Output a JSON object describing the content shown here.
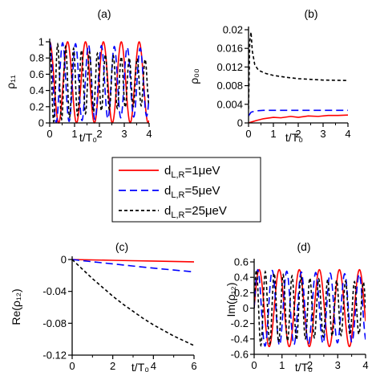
{
  "chart_data": [
    {
      "type": "line",
      "panel_label": "(a)",
      "xlabel": "t/T₀",
      "ylabel": "ρ₁₁",
      "xlim": [
        0,
        4
      ],
      "ylim": [
        0,
        1
      ],
      "xticks": [
        0,
        1,
        2,
        3,
        4
      ],
      "xtick_labels": [
        "0",
        "1",
        "2",
        "3",
        "4"
      ],
      "yticks": [
        0,
        0.2,
        0.4,
        0.6,
        0.8,
        1
      ],
      "ytick_labels": [
        "0",
        "0.2",
        "0.4",
        "0.6",
        "0.8",
        "1"
      ],
      "series": [
        {
          "name": "d_L,R=1μeV",
          "color": "#ff0000",
          "dash": "solid",
          "kind": "cos2",
          "period": 0.72,
          "tau": 1000
        },
        {
          "name": "d_L,R=5μeV",
          "color": "#0000ff",
          "dash": "dashed",
          "kind": "cos2",
          "period": 0.52,
          "tau": 12
        },
        {
          "name": "d_L,R=25μeV",
          "color": "#000000",
          "dash": "dotted",
          "kind": "cos2",
          "period": 0.32,
          "tau": 3
        }
      ]
    },
    {
      "type": "line",
      "panel_label": "(b)",
      "xlabel": "t/T₀",
      "ylabel": "ρ₀₀",
      "xlim": [
        0,
        4
      ],
      "ylim": [
        0,
        0.02
      ],
      "xticks": [
        0,
        1,
        2,
        3,
        4
      ],
      "xtick_labels": [
        "0",
        "1",
        "2",
        "3",
        "4"
      ],
      "yticks": [
        0,
        0.004,
        0.008,
        0.012,
        0.016,
        0.02
      ],
      "ytick_labels": [
        "0",
        "0.004",
        "0.008",
        "0.012",
        "0.016",
        "0.02"
      ],
      "series": [
        {
          "name": "d_L,R=1μeV",
          "color": "#ff0000",
          "dash": "solid",
          "points": [
            [
              0,
              0
            ],
            [
              0.3,
              0.0005
            ],
            [
              0.6,
              0.0009
            ],
            [
              1.0,
              0.0012
            ],
            [
              1.3,
              0.0011
            ],
            [
              1.7,
              0.0014
            ],
            [
              2.0,
              0.0012
            ],
            [
              2.4,
              0.0015
            ],
            [
              2.8,
              0.0014
            ],
            [
              3.2,
              0.0016
            ],
            [
              3.6,
              0.0016
            ],
            [
              4.0,
              0.0017
            ]
          ]
        },
        {
          "name": "d_L,R=5μeV",
          "color": "#0000ff",
          "dash": "dashed",
          "points": [
            [
              0,
              0.0015
            ],
            [
              0.1,
              0.0023
            ],
            [
              0.3,
              0.0026
            ],
            [
              0.6,
              0.0027
            ],
            [
              1.0,
              0.0027
            ],
            [
              2.0,
              0.0027
            ],
            [
              3.0,
              0.0027
            ],
            [
              4.0,
              0.0027
            ]
          ]
        },
        {
          "name": "d_L,R=25μeV",
          "color": "#000000",
          "dash": "dotted",
          "points": [
            [
              0,
              0.003
            ],
            [
              0.05,
              0.0175
            ],
            [
              0.1,
              0.0195
            ],
            [
              0.15,
              0.0155
            ],
            [
              0.25,
              0.0125
            ],
            [
              0.4,
              0.0113
            ],
            [
              0.7,
              0.0106
            ],
            [
              1.0,
              0.0102
            ],
            [
              1.5,
              0.0098
            ],
            [
              2.0,
              0.0095
            ],
            [
              3.0,
              0.0092
            ],
            [
              4.0,
              0.0091
            ]
          ]
        }
      ]
    },
    {
      "type": "line",
      "panel_label": "(c)",
      "xlabel": "t/T₀",
      "ylabel": "Re(ρ₁₂)",
      "xlim": [
        0,
        6
      ],
      "ylim": [
        -0.12,
        0
      ],
      "xticks": [
        0,
        2,
        4,
        6
      ],
      "xtick_labels": [
        "0",
        "2",
        "4",
        "6"
      ],
      "yticks": [
        0,
        -0.04,
        -0.08,
        -0.12
      ],
      "ytick_labels": [
        "0",
        "-0.04",
        "-0.08",
        "-0.12"
      ],
      "series": [
        {
          "name": "d_L,R=1μeV",
          "color": "#ff0000",
          "dash": "solid",
          "points": [
            [
              0,
              0
            ],
            [
              1,
              -0.0005
            ],
            [
              2,
              -0.001
            ],
            [
              3,
              -0.0015
            ],
            [
              4,
              -0.002
            ],
            [
              5,
              -0.0025
            ],
            [
              6,
              -0.003
            ]
          ]
        },
        {
          "name": "d_L,R=5μeV",
          "color": "#0000ff",
          "dash": "dashed",
          "points": [
            [
              0,
              0
            ],
            [
              1,
              -0.0028
            ],
            [
              2,
              -0.0055
            ],
            [
              3,
              -0.0082
            ],
            [
              4,
              -0.0108
            ],
            [
              5,
              -0.0132
            ],
            [
              6,
              -0.0155
            ]
          ]
        },
        {
          "name": "d_L,R=25μeV",
          "color": "#000000",
          "dash": "dotted",
          "points": [
            [
              0,
              0
            ],
            [
              0.5,
              -0.012
            ],
            [
              1,
              -0.024
            ],
            [
              1.5,
              -0.035
            ],
            [
              2,
              -0.046
            ],
            [
              2.5,
              -0.056
            ],
            [
              3,
              -0.065
            ],
            [
              3.5,
              -0.074
            ],
            [
              4,
              -0.082
            ],
            [
              4.5,
              -0.089
            ],
            [
              5,
              -0.096
            ],
            [
              5.5,
              -0.102
            ],
            [
              6,
              -0.108
            ]
          ]
        }
      ]
    },
    {
      "type": "line",
      "panel_label": "(d)",
      "xlabel": "t/T₀",
      "ylabel": "Im(ρ₁₂)",
      "xlim": [
        0,
        4
      ],
      "ylim": [
        -0.6,
        0.6
      ],
      "xticks": [
        0,
        1,
        2,
        3,
        4
      ],
      "xtick_labels": [
        "0",
        "1",
        "2",
        "3",
        "4"
      ],
      "yticks": [
        0.6,
        0.4,
        0.2,
        0,
        -0.2,
        -0.4,
        -0.6
      ],
      "ytick_labels": [
        "0.6",
        "0.4",
        "0.2",
        "0",
        "-0.2",
        "-0.4",
        "-0.6"
      ],
      "series": [
        {
          "name": "d_L,R=1μeV",
          "color": "#ff0000",
          "dash": "solid",
          "kind": "sin",
          "period": 0.72,
          "amp": 0.5,
          "tau": 1000
        },
        {
          "name": "d_L,R=5μeV",
          "color": "#0000ff",
          "dash": "dashed",
          "kind": "sin",
          "period": 0.52,
          "amp": 0.5,
          "tau": 12
        },
        {
          "name": "d_L,R=25μeV",
          "color": "#000000",
          "dash": "dotted",
          "kind": "sin",
          "period": 0.32,
          "amp": 0.5,
          "tau": 3
        }
      ]
    }
  ],
  "legend": {
    "entries": [
      {
        "text": "d",
        "sub": "L,R",
        "rest": "=1μeV",
        "color": "#ff0000",
        "dash": "solid"
      },
      {
        "text": "d",
        "sub": "L,R",
        "rest": "=5μeV",
        "color": "#0000ff",
        "dash": "dashed"
      },
      {
        "text": "d",
        "sub": "L,R",
        "rest": "=25μeV",
        "color": "#000000",
        "dash": "dotted"
      }
    ]
  }
}
